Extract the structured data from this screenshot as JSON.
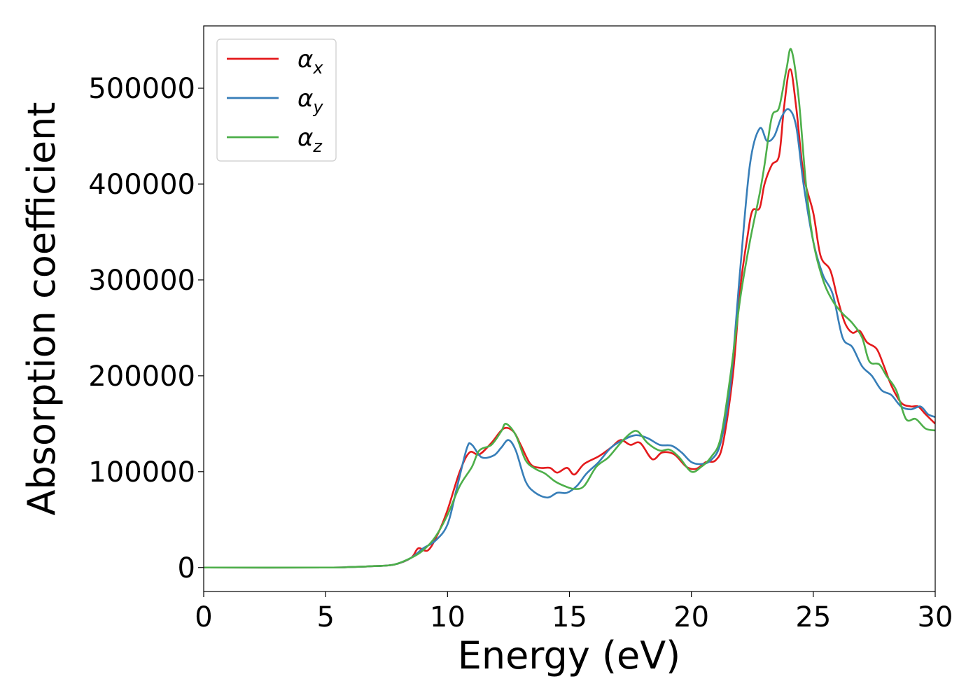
{
  "chart_data": {
    "type": "line",
    "xlabel": "Energy (eV)",
    "ylabel": "Absorption coefficient",
    "xlim": [
      0,
      30
    ],
    "ylim": [
      -25000,
      565000
    ],
    "xticks": [
      0,
      5,
      10,
      15,
      20,
      25,
      30
    ],
    "yticks": [
      0,
      100000,
      200000,
      300000,
      400000,
      500000
    ],
    "grid": false,
    "legend_position": "top-left",
    "series": [
      {
        "name": "α",
        "subscript": "x",
        "color": "#e41a1c",
        "points": [
          [
            0,
            0
          ],
          [
            5,
            0
          ],
          [
            6,
            500
          ],
          [
            7,
            1500
          ],
          [
            7.8,
            3000
          ],
          [
            8.5,
            10000
          ],
          [
            8.8,
            20000
          ],
          [
            9.2,
            18000
          ],
          [
            9.6,
            35000
          ],
          [
            10,
            60000
          ],
          [
            10.5,
            100000
          ],
          [
            10.9,
            120000
          ],
          [
            11.3,
            118000
          ],
          [
            11.8,
            130000
          ],
          [
            12.3,
            145000
          ],
          [
            12.7,
            142000
          ],
          [
            13,
            128000
          ],
          [
            13.4,
            108000
          ],
          [
            13.8,
            104000
          ],
          [
            14.2,
            104000
          ],
          [
            14.5,
            99000
          ],
          [
            14.9,
            104000
          ],
          [
            15.2,
            97000
          ],
          [
            15.6,
            108000
          ],
          [
            16.2,
            116000
          ],
          [
            16.7,
            125000
          ],
          [
            17.1,
            133000
          ],
          [
            17.5,
            128000
          ],
          [
            17.9,
            130000
          ],
          [
            18.4,
            113000
          ],
          [
            18.8,
            120000
          ],
          [
            19.3,
            118000
          ],
          [
            19.8,
            105000
          ],
          [
            20.2,
            103000
          ],
          [
            20.6,
            110000
          ],
          [
            21,
            112000
          ],
          [
            21.3,
            130000
          ],
          [
            21.7,
            200000
          ],
          [
            22,
            290000
          ],
          [
            22.3,
            345000
          ],
          [
            22.5,
            372000
          ],
          [
            22.8,
            375000
          ],
          [
            23,
            400000
          ],
          [
            23.3,
            420000
          ],
          [
            23.6,
            430000
          ],
          [
            23.8,
            480000
          ],
          [
            24.05,
            520000
          ],
          [
            24.3,
            480000
          ],
          [
            24.6,
            410000
          ],
          [
            25,
            370000
          ],
          [
            25.3,
            325000
          ],
          [
            25.7,
            310000
          ],
          [
            26,
            280000
          ],
          [
            26.3,
            255000
          ],
          [
            26.6,
            245000
          ],
          [
            26.9,
            247000
          ],
          [
            27.2,
            235000
          ],
          [
            27.6,
            228000
          ],
          [
            27.9,
            210000
          ],
          [
            28.2,
            190000
          ],
          [
            28.6,
            172000
          ],
          [
            29,
            168000
          ],
          [
            29.3,
            168000
          ],
          [
            29.6,
            160000
          ],
          [
            30,
            150000
          ]
        ]
      },
      {
        "name": "α",
        "subscript": "y",
        "color": "#377eb8",
        "points": [
          [
            0,
            0
          ],
          [
            5,
            0
          ],
          [
            6,
            500
          ],
          [
            7,
            1500
          ],
          [
            7.8,
            3000
          ],
          [
            8.5,
            10000
          ],
          [
            9,
            20000
          ],
          [
            9.5,
            28000
          ],
          [
            10,
            45000
          ],
          [
            10.4,
            85000
          ],
          [
            10.8,
            125000
          ],
          [
            11,
            128000
          ],
          [
            11.4,
            115000
          ],
          [
            11.9,
            117000
          ],
          [
            12.2,
            125000
          ],
          [
            12.5,
            133000
          ],
          [
            12.8,
            122000
          ],
          [
            13.2,
            90000
          ],
          [
            13.6,
            78000
          ],
          [
            14.1,
            73000
          ],
          [
            14.5,
            78000
          ],
          [
            14.9,
            78000
          ],
          [
            15.3,
            85000
          ],
          [
            15.7,
            98000
          ],
          [
            16.2,
            110000
          ],
          [
            16.7,
            125000
          ],
          [
            17.2,
            133000
          ],
          [
            17.7,
            138000
          ],
          [
            18.2,
            135000
          ],
          [
            18.7,
            128000
          ],
          [
            19.2,
            127000
          ],
          [
            19.6,
            120000
          ],
          [
            20,
            110000
          ],
          [
            20.4,
            108000
          ],
          [
            20.8,
            112000
          ],
          [
            21.2,
            130000
          ],
          [
            21.6,
            190000
          ],
          [
            22,
            310000
          ],
          [
            22.4,
            420000
          ],
          [
            22.8,
            458000
          ],
          [
            23.1,
            445000
          ],
          [
            23.4,
            450000
          ],
          [
            23.7,
            470000
          ],
          [
            24,
            478000
          ],
          [
            24.3,
            460000
          ],
          [
            24.6,
            400000
          ],
          [
            25,
            340000
          ],
          [
            25.4,
            305000
          ],
          [
            25.8,
            285000
          ],
          [
            26.2,
            240000
          ],
          [
            26.6,
            230000
          ],
          [
            27,
            210000
          ],
          [
            27.4,
            200000
          ],
          [
            27.8,
            185000
          ],
          [
            28.2,
            180000
          ],
          [
            28.6,
            168000
          ],
          [
            29,
            165000
          ],
          [
            29.4,
            168000
          ],
          [
            29.7,
            160000
          ],
          [
            30,
            157000
          ]
        ]
      },
      {
        "name": "α",
        "subscript": "z",
        "color": "#4daf4a",
        "points": [
          [
            0,
            0
          ],
          [
            5,
            0
          ],
          [
            6,
            500
          ],
          [
            7,
            1500
          ],
          [
            7.8,
            3000
          ],
          [
            8.5,
            10000
          ],
          [
            9,
            18000
          ],
          [
            9.5,
            32000
          ],
          [
            10,
            55000
          ],
          [
            10.5,
            85000
          ],
          [
            11,
            105000
          ],
          [
            11.3,
            122000
          ],
          [
            11.8,
            128000
          ],
          [
            12.2,
            142000
          ],
          [
            12.4,
            150000
          ],
          [
            12.8,
            138000
          ],
          [
            13.2,
            112000
          ],
          [
            13.6,
            103000
          ],
          [
            14,
            98000
          ],
          [
            14.4,
            90000
          ],
          [
            14.8,
            85000
          ],
          [
            15.2,
            82000
          ],
          [
            15.6,
            85000
          ],
          [
            16.1,
            105000
          ],
          [
            16.6,
            115000
          ],
          [
            17.1,
            130000
          ],
          [
            17.5,
            140000
          ],
          [
            17.8,
            142000
          ],
          [
            18.2,
            130000
          ],
          [
            18.7,
            122000
          ],
          [
            19.1,
            123000
          ],
          [
            19.5,
            115000
          ],
          [
            20,
            100000
          ],
          [
            20.4,
            105000
          ],
          [
            20.8,
            115000
          ],
          [
            21.2,
            135000
          ],
          [
            21.6,
            200000
          ],
          [
            22,
            280000
          ],
          [
            22.4,
            340000
          ],
          [
            22.8,
            390000
          ],
          [
            23,
            420000
          ],
          [
            23.3,
            470000
          ],
          [
            23.6,
            480000
          ],
          [
            23.9,
            520000
          ],
          [
            24.1,
            540000
          ],
          [
            24.4,
            490000
          ],
          [
            24.7,
            400000
          ],
          [
            25,
            340000
          ],
          [
            25.4,
            300000
          ],
          [
            25.8,
            278000
          ],
          [
            26.2,
            265000
          ],
          [
            26.6,
            255000
          ],
          [
            27,
            240000
          ],
          [
            27.3,
            215000
          ],
          [
            27.7,
            212000
          ],
          [
            28,
            200000
          ],
          [
            28.4,
            185000
          ],
          [
            28.8,
            155000
          ],
          [
            29.2,
            155000
          ],
          [
            29.6,
            145000
          ],
          [
            30,
            143000
          ]
        ]
      }
    ]
  }
}
